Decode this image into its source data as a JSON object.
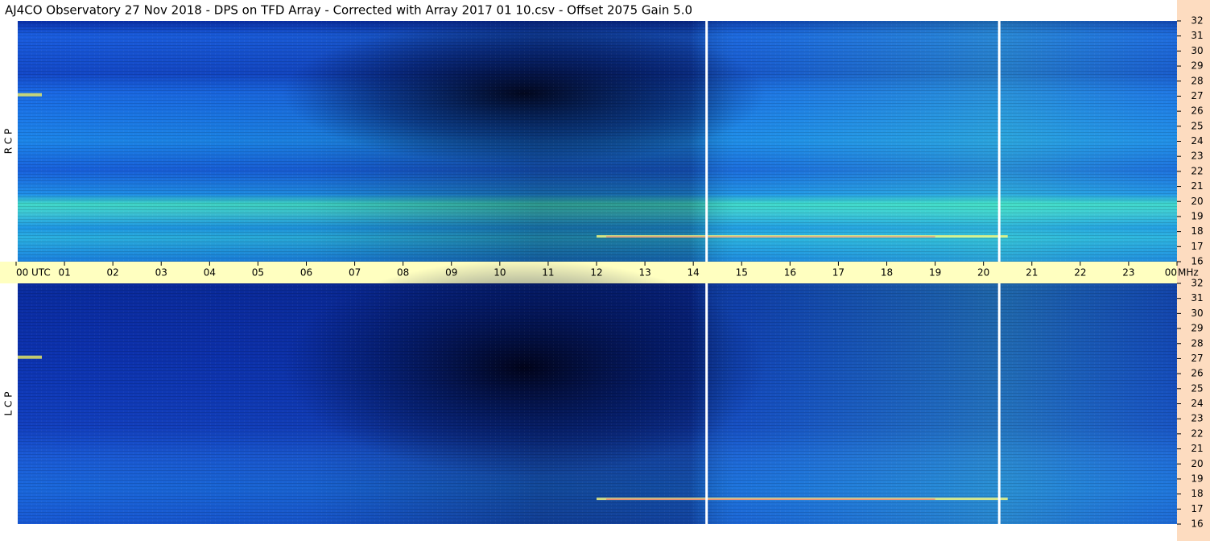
{
  "chart_data": {
    "type": "spectrogram",
    "title": "AJ4CO Observatory  27 Nov 2018  -  DPS on TFD Array  -  Corrected with Array 2017 01 10.csv  -  Offset 2075  Gain 5.0",
    "panels": [
      {
        "label": "R C P"
      },
      {
        "label": "L C P"
      }
    ],
    "x_unit": "UTC",
    "y_unit": "MHz",
    "xlim": [
      0,
      24
    ],
    "xticks": [
      {
        "value": 0,
        "label": "00"
      },
      {
        "value": 1,
        "label": "01"
      },
      {
        "value": 2,
        "label": "02"
      },
      {
        "value": 3,
        "label": "03"
      },
      {
        "value": 4,
        "label": "04"
      },
      {
        "value": 5,
        "label": "05"
      },
      {
        "value": 6,
        "label": "06"
      },
      {
        "value": 7,
        "label": "07"
      },
      {
        "value": 8,
        "label": "08"
      },
      {
        "value": 9,
        "label": "09"
      },
      10,
      11,
      12,
      13,
      14,
      15,
      16,
      17,
      18,
      19,
      20,
      21,
      22,
      23,
      {
        "value": 24,
        "label": "00"
      }
    ],
    "ylim": [
      16,
      32
    ],
    "yticks": [
      16,
      17,
      18,
      19,
      20,
      21,
      22,
      23,
      24,
      25,
      26,
      27,
      28,
      29,
      30,
      31,
      32
    ]
  }
}
